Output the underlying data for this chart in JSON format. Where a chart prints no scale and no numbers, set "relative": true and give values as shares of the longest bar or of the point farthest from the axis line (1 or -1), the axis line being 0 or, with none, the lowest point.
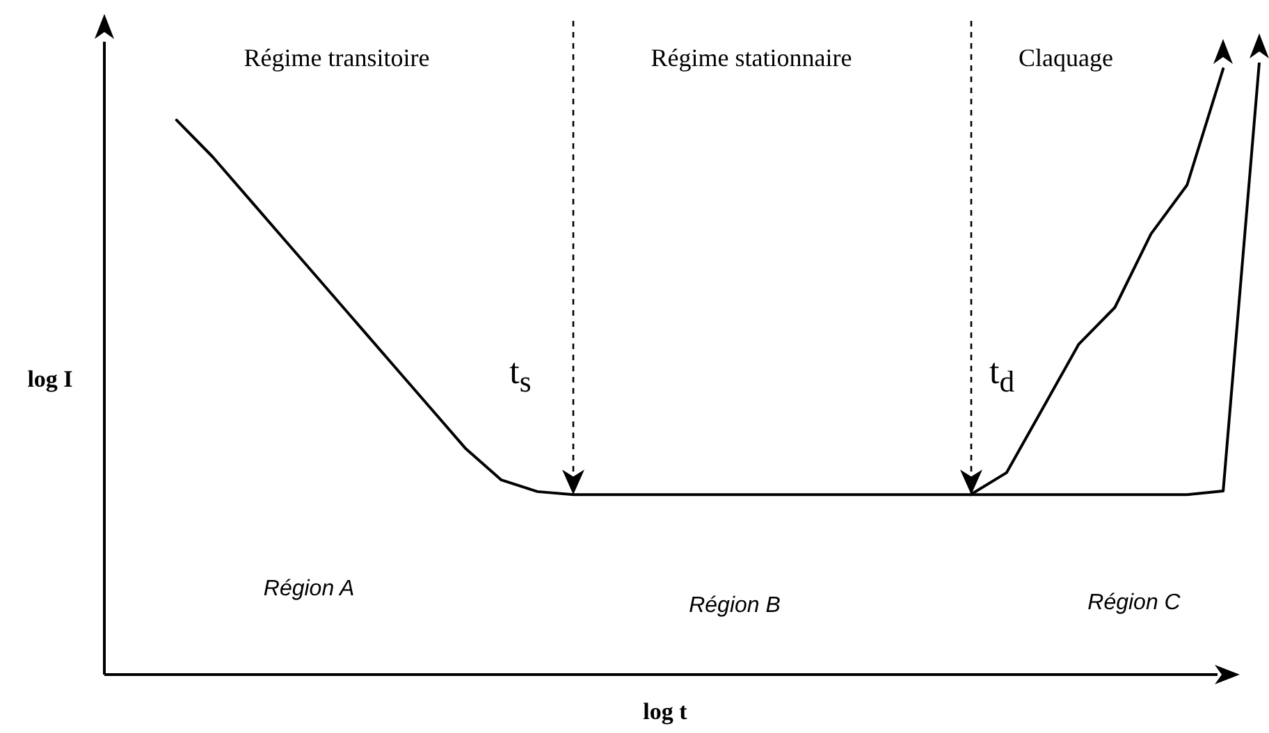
{
  "chart_data": {
    "type": "line",
    "relative": true,
    "xlabel": "log t",
    "ylabel": "log I",
    "categories": [
      null,
      null,
      null,
      null,
      null,
      null,
      null,
      null,
      null,
      null,
      null,
      null,
      null,
      null,
      null,
      null,
      null,
      null,
      null,
      null,
      null,
      null,
      null,
      null,
      null,
      null,
      null,
      null,
      null,
      null,
      null,
      null,
      null
    ],
    "series": [
      {
        "color": "#000000",
        "values": [
          null,
          null,
          0.906,
          0.846,
          0.778,
          0.71,
          0.642,
          0.574,
          0.506,
          0.438,
          0.37,
          0.318,
          0.299,
          0.294,
          0.294,
          0.294,
          0.294,
          0.294,
          0.294,
          0.294,
          0.294,
          0.294,
          0.294,
          0.294,
          0.294,
          0.294,
          0.294,
          0.294,
          0.294,
          0.294,
          0.294,
          0.3,
          1.0
        ]
      },
      {
        "color": "#000000",
        "values": [
          null,
          null,
          null,
          null,
          null,
          null,
          null,
          null,
          null,
          null,
          null,
          null,
          null,
          null,
          null,
          null,
          null,
          null,
          null,
          null,
          null,
          null,
          null,
          null,
          0.294,
          0.33,
          0.435,
          0.54,
          0.6,
          0.72,
          0.8,
          0.99,
          null
        ]
      }
    ],
    "annotations": [
      "Régime transitoire",
      "Régime stationnaire",
      "Claquage",
      "t$_{s}$",
      "t$_{d}$",
      "Région A",
      "Région B",
      "Région C"
    ],
    "marker": "none",
    "line_style": "solid"
  }
}
